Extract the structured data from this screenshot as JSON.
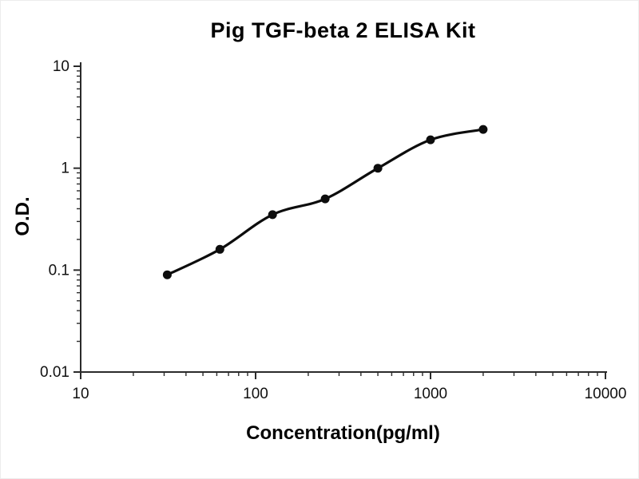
{
  "chart_data": {
    "type": "scatter",
    "title": "Pig TGF-beta 2 ELISA Kit",
    "xlabel": "Concentration(pg/ml)",
    "ylabel": "O.D.",
    "x_scale": "log",
    "y_scale": "log",
    "xlim": [
      10,
      10000
    ],
    "ylim": [
      0.01,
      10
    ],
    "x_ticks": [
      10,
      100,
      1000,
      10000
    ],
    "y_ticks": [
      10,
      1,
      0.1,
      0.01
    ],
    "grid": false,
    "legend": "none",
    "points": [
      {
        "x": 31.25,
        "y": 0.09
      },
      {
        "x": 62.5,
        "y": 0.16
      },
      {
        "x": 125,
        "y": 0.35
      },
      {
        "x": 250,
        "y": 0.5
      },
      {
        "x": 500,
        "y": 1.0
      },
      {
        "x": 1000,
        "y": 1.9
      },
      {
        "x": 2000,
        "y": 2.4
      }
    ],
    "curve": true,
    "colors": {
      "line": "#0d0d0d",
      "point": "#0d0d0d",
      "axis": "#2b2b2b",
      "tick_label": "#111111"
    }
  }
}
